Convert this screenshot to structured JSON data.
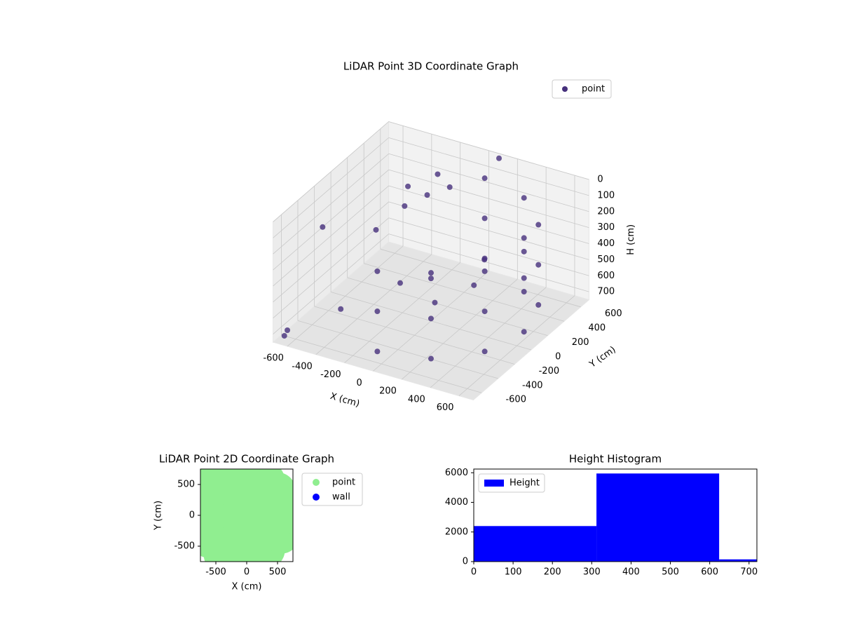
{
  "chart_data": [
    {
      "type": "scatter3d",
      "title": "LiDAR Point 3D Coordinate Graph",
      "x_label": "X (cm)",
      "y_label": "Y (cm)",
      "z_label": "H (cm)",
      "xlim": [
        -700,
        700
      ],
      "ylim": [
        -700,
        700
      ],
      "zlim": [
        0,
        750
      ],
      "z_inverted": true,
      "xticks": [
        -600,
        -400,
        -200,
        0,
        200,
        400,
        600
      ],
      "yticks": [
        -600,
        -400,
        -200,
        0,
        200,
        400,
        600
      ],
      "zticks": [
        0,
        100,
        200,
        300,
        400,
        500,
        600,
        700
      ],
      "legend": "upper right",
      "series": [
        {
          "name": "point",
          "color": "#46307c",
          "x": [
            0,
            325,
            563,
            650,
            563,
            325,
            0,
            0,
            325,
            563,
            650,
            563,
            325,
            0,
            0,
            325,
            563,
            650,
            563,
            325,
            0,
            200,
            300,
            200,
            0,
            -100,
            -200,
            -100,
            -300,
            -700,
            -600,
            -500,
            -400,
            -650,
            100,
            -450,
            -300
          ],
          "y": [
            -650,
            -563,
            -325,
            0,
            325,
            563,
            650,
            -650,
            -563,
            -325,
            0,
            325,
            563,
            650,
            -650,
            -563,
            -325,
            0,
            325,
            563,
            650,
            -300,
            0,
            300,
            0,
            -200,
            300,
            400,
            200,
            -100,
            -700,
            200,
            -400,
            -650,
            650,
            500,
            600
          ],
          "h": [
            150,
            150,
            150,
            150,
            150,
            150,
            150,
            400,
            400,
            400,
            400,
            400,
            400,
            400,
            650,
            650,
            650,
            650,
            650,
            650,
            650,
            450,
            450,
            450,
            450,
            450,
            150,
            120,
            200,
            300,
            650,
            400,
            600,
            720,
            0,
            250,
            180
          ]
        }
      ]
    },
    {
      "type": "scatter",
      "title": "LiDAR Point 2D Coordinate Graph",
      "x_label": "X (cm)",
      "y_label": "Y (cm)",
      "xlim": [
        -750,
        750
      ],
      "ylim": [
        -750,
        750
      ],
      "xticks": [
        -500,
        0,
        500
      ],
      "yticks": [
        -500,
        0,
        500
      ],
      "legend": "outside right",
      "series": [
        {
          "name": "point",
          "color": "#90ee90",
          "x": [
            0,
            325,
            563,
            650,
            563,
            325,
            0,
            200,
            300,
            200,
            0,
            -100,
            -200,
            -100,
            -300,
            400,
            400,
            100,
            100,
            500,
            500,
            -200,
            -500,
            -650,
            -400,
            -600,
            -550
          ],
          "y": [
            -650,
            -563,
            -325,
            0,
            325,
            563,
            650,
            -300,
            0,
            300,
            0,
            -200,
            300,
            400,
            200,
            250,
            -250,
            550,
            -550,
            0,
            400,
            -500,
            -100,
            300,
            -650,
            -400,
            650
          ]
        },
        {
          "name": "wall",
          "color": "#0000ff",
          "x": [],
          "y": []
        }
      ]
    },
    {
      "type": "histogram",
      "title": "Height Histogram",
      "xlim": [
        0,
        720
      ],
      "ylim": [
        0,
        6250
      ],
      "xticks": [
        0,
        100,
        200,
        300,
        400,
        500,
        600,
        700
      ],
      "yticks": [
        0,
        2000,
        4000,
        6000
      ],
      "legend": "upper left",
      "series": [
        {
          "name": "Height",
          "color": "#0000ff",
          "bins": [
            0,
            312,
            624,
            720
          ],
          "values": [
            2400,
            5950,
            150
          ]
        }
      ]
    }
  ]
}
